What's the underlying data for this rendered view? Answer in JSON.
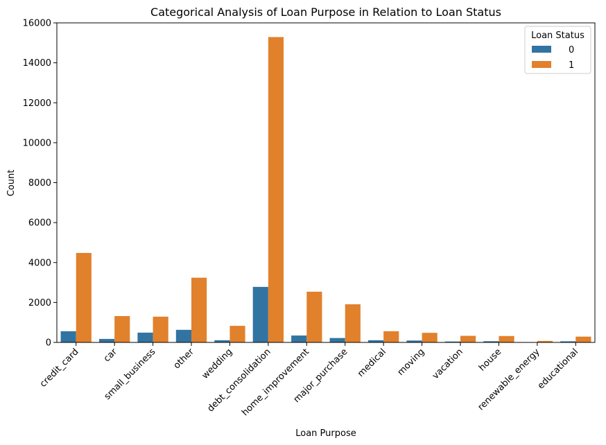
{
  "chart_data": {
    "type": "bar",
    "title": "Categorical Analysis of Loan Purpose in Relation to Loan Status",
    "xlabel": "Loan Purpose",
    "ylabel": "Count",
    "ylim": [
      0,
      16000
    ],
    "yticks": [
      0,
      2000,
      4000,
      6000,
      8000,
      10000,
      12000,
      14000,
      16000
    ],
    "categories": [
      "credit_card",
      "car",
      "small_business",
      "other",
      "wedding",
      "debt_consolidation",
      "home_improvement",
      "major_purchase",
      "medical",
      "moving",
      "vacation",
      "house",
      "renewable_energy",
      "educational"
    ],
    "legend": {
      "title": "Loan Status",
      "placement": "top-right"
    },
    "series": [
      {
        "name": "0",
        "color": "#3274a1",
        "values": [
          560,
          175,
          490,
          630,
          110,
          2780,
          345,
          220,
          110,
          95,
          45,
          60,
          5,
          55
        ]
      },
      {
        "name": "1",
        "color": "#e1812c",
        "values": [
          4480,
          1320,
          1290,
          3240,
          830,
          15290,
          2540,
          1910,
          560,
          480,
          330,
          320,
          75,
          290
        ]
      }
    ],
    "grid": false
  }
}
